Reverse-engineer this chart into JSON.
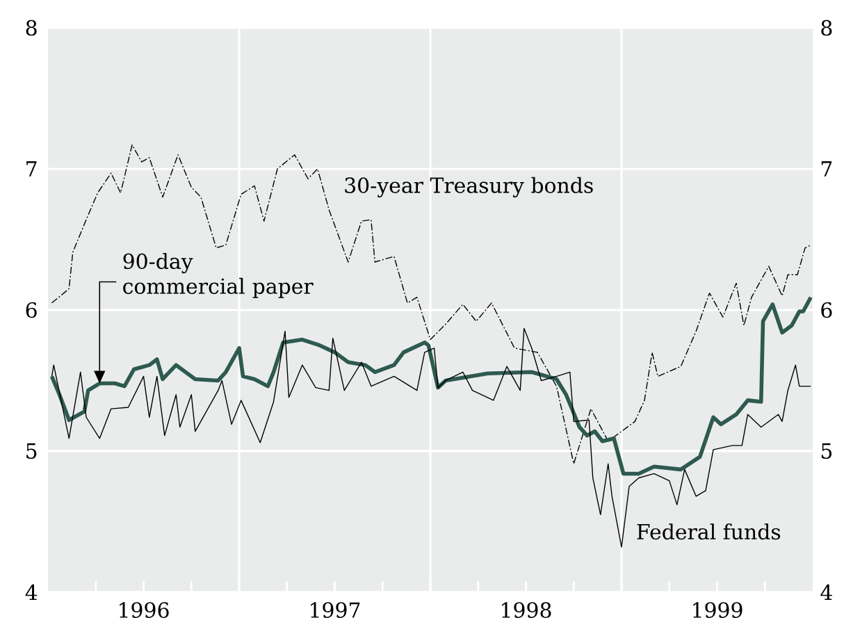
{
  "chart_data": {
    "type": "line",
    "xlim": [
      1996,
      2000
    ],
    "xticks": [
      {
        "value": 1996.25,
        "label": null
      },
      {
        "value": 1996.5,
        "label": "1996"
      },
      {
        "value": 1996.75,
        "label": null
      },
      {
        "value": 1997,
        "label": null
      },
      {
        "value": 1997.25,
        "label": null
      },
      {
        "value": 1997.5,
        "label": "1997"
      },
      {
        "value": 1997.75,
        "label": null
      },
      {
        "value": 1998,
        "label": null
      },
      {
        "value": 1998.25,
        "label": null
      },
      {
        "value": 1998.5,
        "label": "1998"
      },
      {
        "value": 1998.75,
        "label": null
      },
      {
        "value": 1999,
        "label": null
      },
      {
        "value": 1999.25,
        "label": null
      },
      {
        "value": 1999.5,
        "label": "1999"
      },
      {
        "value": 1999.75,
        "label": null
      }
    ],
    "ylim": [
      4,
      8
    ],
    "yticks": [
      4,
      5,
      6,
      7,
      8
    ],
    "y2lim": [
      4,
      8
    ],
    "y2ticks": [
      4,
      5,
      6,
      7,
      8
    ],
    "grid": true,
    "series": [
      {
        "name": "30-year Treasury bonds",
        "color": "#000000",
        "line_style": "dashed",
        "x": [
          1996.02,
          1996.11,
          1996.13,
          1996.2,
          1996.26,
          1996.33,
          1996.38,
          1996.44,
          1996.49,
          1996.53,
          1996.6,
          1996.68,
          1996.75,
          1996.8,
          1996.88,
          1996.93,
          1997.01,
          1997.08,
          1997.13,
          1997.2,
          1997.29,
          1997.36,
          1997.41,
          1997.47,
          1997.57,
          1997.64,
          1997.69,
          1997.71,
          1997.81,
          1997.88,
          1997.93,
          1998.0,
          1998.08,
          1998.17,
          1998.24,
          1998.32,
          1998.44,
          1998.56,
          1998.66,
          1998.75,
          1998.84,
          1998.93,
          1999.0,
          1999.07,
          1999.12,
          1999.16,
          1999.19,
          1999.31,
          1999.39,
          1999.46,
          1999.53,
          1999.6,
          1999.64,
          1999.68,
          1999.77,
          1999.84,
          1999.87,
          1999.92,
          1999.96,
          1999.99
        ],
        "values": [
          6.05,
          6.15,
          6.41,
          6.64,
          6.83,
          6.97,
          6.83,
          7.17,
          7.05,
          7.08,
          6.8,
          7.1,
          6.87,
          6.8,
          6.44,
          6.46,
          6.82,
          6.88,
          6.63,
          7.0,
          7.1,
          6.93,
          7.0,
          6.71,
          6.34,
          6.63,
          6.64,
          6.34,
          6.38,
          6.05,
          6.09,
          5.79,
          5.9,
          6.04,
          5.92,
          6.05,
          5.73,
          5.7,
          5.46,
          4.91,
          5.3,
          5.07,
          5.14,
          5.21,
          5.36,
          5.7,
          5.53,
          5.6,
          5.85,
          6.12,
          5.95,
          6.19,
          5.89,
          6.09,
          6.31,
          6.1,
          6.25,
          6.25,
          6.44,
          6.46
        ]
      },
      {
        "name": "90-day commercial paper",
        "color": "#2e5a50",
        "line_style": "solid",
        "x": [
          1996.02,
          1996.06,
          1996.11,
          1996.19,
          1996.21,
          1996.27,
          1996.35,
          1996.4,
          1996.45,
          1996.53,
          1996.57,
          1996.6,
          1996.67,
          1996.77,
          1996.89,
          1996.93,
          1997.0,
          1997.02,
          1997.08,
          1997.15,
          1997.18,
          1997.23,
          1997.33,
          1997.42,
          1997.5,
          1997.57,
          1997.66,
          1997.71,
          1997.81,
          1997.86,
          1997.97,
          1997.99,
          1998.04,
          1998.08,
          1998.3,
          1998.53,
          1998.66,
          1998.71,
          1998.78,
          1998.82,
          1998.86,
          1998.9,
          1998.96,
          1999.01,
          1999.09,
          1999.17,
          1999.31,
          1999.41,
          1999.48,
          1999.52,
          1999.6,
          1999.66,
          1999.73,
          1999.74,
          1999.79,
          1999.84,
          1999.89,
          1999.93,
          1999.95,
          1999.99
        ],
        "values": [
          5.53,
          5.4,
          5.22,
          5.28,
          5.43,
          5.48,
          5.48,
          5.46,
          5.58,
          5.61,
          5.65,
          5.51,
          5.61,
          5.51,
          5.5,
          5.56,
          5.73,
          5.53,
          5.51,
          5.46,
          5.56,
          5.77,
          5.79,
          5.75,
          5.7,
          5.63,
          5.61,
          5.56,
          5.61,
          5.7,
          5.77,
          5.75,
          5.45,
          5.5,
          5.55,
          5.56,
          5.51,
          5.4,
          5.17,
          5.11,
          5.14,
          5.07,
          5.09,
          4.84,
          4.84,
          4.89,
          4.87,
          4.96,
          5.24,
          5.19,
          5.26,
          5.36,
          5.35,
          5.92,
          6.04,
          5.84,
          5.89,
          5.99,
          5.99,
          6.09
        ]
      },
      {
        "name": "Federal funds",
        "color": "#000000",
        "line_style": "solid",
        "x": [
          1996.02,
          1996.03,
          1996.11,
          1996.17,
          1996.2,
          1996.27,
          1996.33,
          1996.42,
          1996.5,
          1996.53,
          1996.57,
          1996.61,
          1996.67,
          1996.69,
          1996.75,
          1996.77,
          1996.89,
          1996.91,
          1996.96,
          1997.01,
          1997.11,
          1997.18,
          1997.24,
          1997.26,
          1997.33,
          1997.4,
          1997.47,
          1997.49,
          1997.55,
          1997.64,
          1997.69,
          1997.81,
          1997.93,
          1997.97,
          1998.02,
          1998.04,
          1998.08,
          1998.17,
          1998.22,
          1998.33,
          1998.4,
          1998.47,
          1998.49,
          1998.53,
          1998.58,
          1998.66,
          1998.73,
          1998.75,
          1998.83,
          1998.85,
          1998.89,
          1998.93,
          1998.95,
          1999.0,
          1999.04,
          1999.09,
          1999.17,
          1999.25,
          1999.29,
          1999.33,
          1999.39,
          1999.44,
          1999.48,
          1999.58,
          1999.63,
          1999.66,
          1999.73,
          1999.82,
          1999.84,
          1999.87,
          1999.91,
          1999.93,
          1999.99
        ],
        "values": [
          5.53,
          5.61,
          5.09,
          5.56,
          5.24,
          5.09,
          5.3,
          5.31,
          5.53,
          5.24,
          5.53,
          5.11,
          5.4,
          5.17,
          5.4,
          5.14,
          5.43,
          5.5,
          5.19,
          5.36,
          5.06,
          5.35,
          5.85,
          5.38,
          5.61,
          5.45,
          5.43,
          5.8,
          5.43,
          5.63,
          5.46,
          5.53,
          5.43,
          5.7,
          5.73,
          5.45,
          5.5,
          5.56,
          5.43,
          5.36,
          5.6,
          5.43,
          5.87,
          5.73,
          5.5,
          5.53,
          5.56,
          5.21,
          5.22,
          4.81,
          4.55,
          4.91,
          4.68,
          4.32,
          4.75,
          4.81,
          4.84,
          4.79,
          4.62,
          4.87,
          4.68,
          4.72,
          5.01,
          5.04,
          5.04,
          5.26,
          5.17,
          5.26,
          5.21,
          5.43,
          5.61,
          5.46,
          5.46
        ]
      }
    ]
  }
}
